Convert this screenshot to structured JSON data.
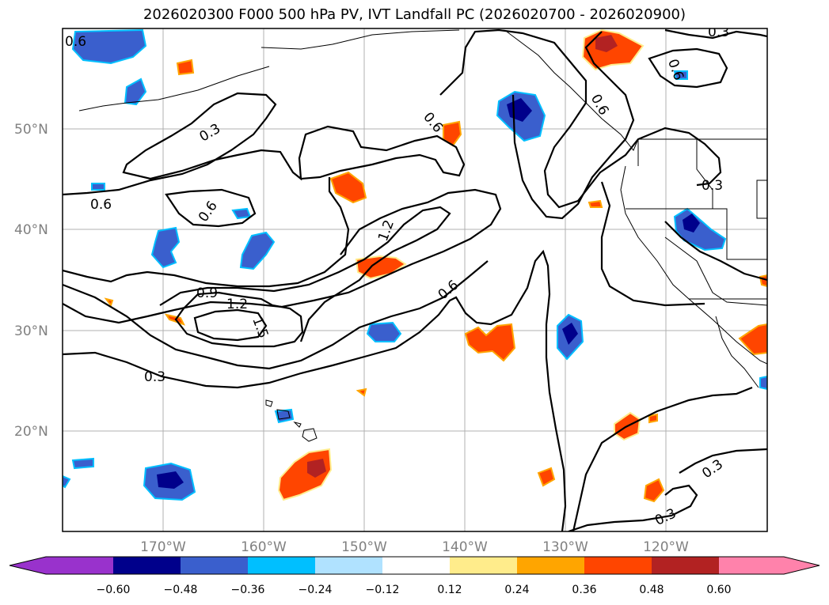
{
  "title": "2026020300 F000 500 hPa PV, IVT Landfall PC (2026020700 - 2026020900)",
  "map": {
    "lon_min": -180,
    "lon_max": -110,
    "lat_min": 10,
    "lat_max": 60,
    "lat_ticks": [
      {
        "value": 20,
        "label": "20°N"
      },
      {
        "value": 30,
        "label": "30°N"
      },
      {
        "value": 40,
        "label": "40°N"
      },
      {
        "value": 50,
        "label": "50°N"
      }
    ],
    "lon_ticks": [
      {
        "value": -170,
        "label": "170°W"
      },
      {
        "value": -160,
        "label": "160°W"
      },
      {
        "value": -150,
        "label": "150°W"
      },
      {
        "value": -140,
        "label": "140°W"
      },
      {
        "value": -130,
        "label": "130°W"
      },
      {
        "value": -120,
        "label": "120°W"
      }
    ]
  },
  "contour_labels": [
    "0.6",
    "0.3",
    "0.6",
    "0.6",
    "0.9",
    "1.2",
    "1.5",
    "0.3",
    "1.2",
    "0.6",
    "0.6",
    "0.3",
    "0.3",
    "0.3",
    "0.3",
    "0.6",
    "0.6"
  ],
  "colorbar": {
    "colors": [
      "#9932cc",
      "#00008b",
      "#3a5fcd",
      "#00bfff",
      "#b0e2ff",
      "#ffffff",
      "#ffec8b",
      "#ffa500",
      "#ff4500",
      "#b22222",
      "#ff82ab"
    ],
    "tick_labels": [
      "−0.60",
      "−0.48",
      "−0.36",
      "−0.24",
      "−0.12",
      "0.12",
      "0.24",
      "0.36",
      "0.48",
      "0.60"
    ]
  },
  "colors": {
    "neg_strong": "#00008b",
    "neg_mid": "#3a5fcd",
    "neg_light": "#00bfff",
    "pos_mid": "#ff4500",
    "pos_strong": "#b22222",
    "pos_light": "#ffa500"
  }
}
